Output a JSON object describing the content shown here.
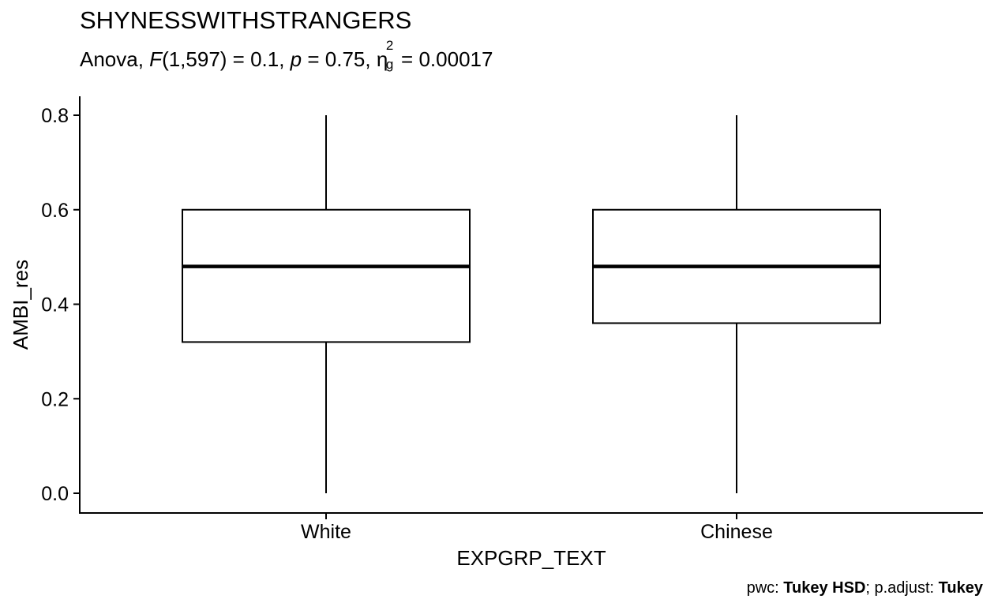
{
  "chart_data": {
    "type": "box",
    "title": "SHYNESSWITHSTRANGERS",
    "subtitle": {
      "prefix": "Anova, ",
      "F": "F",
      "df": "(1,597) = 0.1, ",
      "p": "p",
      "p_value": " = 0.75, ",
      "eta": "η",
      "eta_sup": "2",
      "eta_sub": "g",
      "eta_value": " = 0.00017"
    },
    "xlabel": "EXPGRP_TEXT",
    "ylabel": "AMBI_res",
    "categories": [
      "White",
      "Chinese"
    ],
    "boxes": [
      {
        "category": "White",
        "min": 0.0,
        "q1": 0.32,
        "median": 0.48,
        "q3": 0.6,
        "max": 0.8
      },
      {
        "category": "Chinese",
        "min": 0.0,
        "q1": 0.36,
        "median": 0.48,
        "q3": 0.6,
        "max": 0.8
      }
    ],
    "yticks": [
      0.0,
      0.2,
      0.4,
      0.6,
      0.8
    ],
    "ytick_labels": [
      "0.0",
      "0.2",
      "0.4",
      "0.6",
      "0.8"
    ],
    "ylim": [
      -0.04,
      0.84
    ],
    "grid": false,
    "legend": "none"
  },
  "caption": {
    "pwc_label": "pwc: ",
    "pwc_value": "Tukey HSD",
    "adjust_label": "; p.adjust: ",
    "adjust_value": "Tukey"
  }
}
